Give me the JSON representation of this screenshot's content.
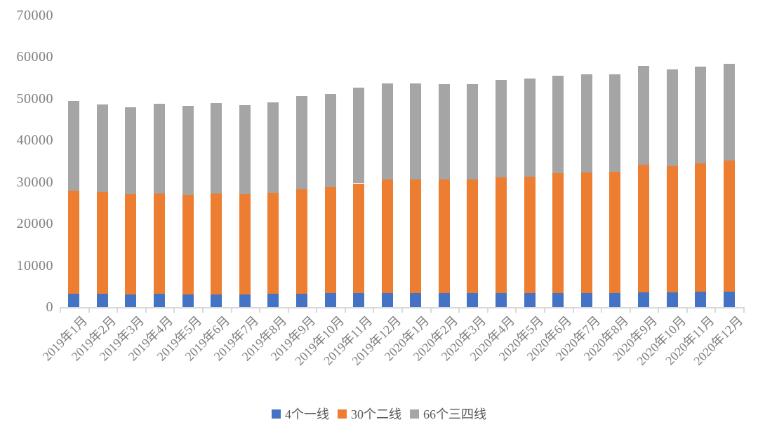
{
  "chart_data": {
    "type": "bar",
    "stacked": true,
    "title": "",
    "xlabel": "",
    "ylabel": "",
    "categories": [
      "2019年1月",
      "2019年2月",
      "2019年3月",
      "2019年4月",
      "2019年5月",
      "2019年6月",
      "2019年7月",
      "2019年8月",
      "2019年9月",
      "2019年10月",
      "2019年11月",
      "2019年12月",
      "2020年1月",
      "2020年2月",
      "2020年3月",
      "2020年4月",
      "2020年5月",
      "2020年6月",
      "2020年7月",
      "2020年8月",
      "2020年9月",
      "2020年10月",
      "2020年11月",
      "2020年12月"
    ],
    "series": [
      {
        "name": "4个一线",
        "color": "#4472C4",
        "values": [
          3200,
          3200,
          3100,
          3200,
          3100,
          3100,
          3100,
          3200,
          3200,
          3300,
          3300,
          3300,
          3300,
          3300,
          3400,
          3400,
          3400,
          3400,
          3400,
          3400,
          3600,
          3600,
          3700,
          3700
        ]
      },
      {
        "name": "30个二线",
        "color": "#ED7D31",
        "values": [
          24700,
          24400,
          24000,
          24000,
          23800,
          24100,
          24000,
          24200,
          25000,
          25400,
          26400,
          27300,
          27300,
          27300,
          27200,
          27700,
          27900,
          28700,
          28900,
          29100,
          30500,
          30200,
          30800,
          31400
        ]
      },
      {
        "name": "66个三四线",
        "color": "#A5A5A5",
        "values": [
          21500,
          21000,
          20800,
          21600,
          21400,
          21700,
          21400,
          21800,
          22400,
          22400,
          22900,
          23000,
          23100,
          22900,
          22900,
          23400,
          23600,
          23500,
          23500,
          23300,
          23800,
          23300,
          23200,
          23300
        ]
      }
    ],
    "totals": [
      49400,
      48600,
      47900,
      48800,
      48300,
      48900,
      48500,
      49200,
      50600,
      51100,
      52600,
      53600,
      53700,
      53500,
      53500,
      54500,
      54900,
      55600,
      55800,
      55800,
      57900,
      57100,
      57700,
      58400
    ],
    "ylim": [
      0,
      70000
    ],
    "yticks": [
      0,
      10000,
      20000,
      30000,
      40000,
      50000,
      60000,
      70000
    ],
    "grid": false,
    "legend_position": "bottom",
    "axis_color": "#D9D9D9",
    "tick_label_color": "#7F7F7F",
    "legend_text_color": "#595959",
    "background": "#FFFFFF"
  }
}
